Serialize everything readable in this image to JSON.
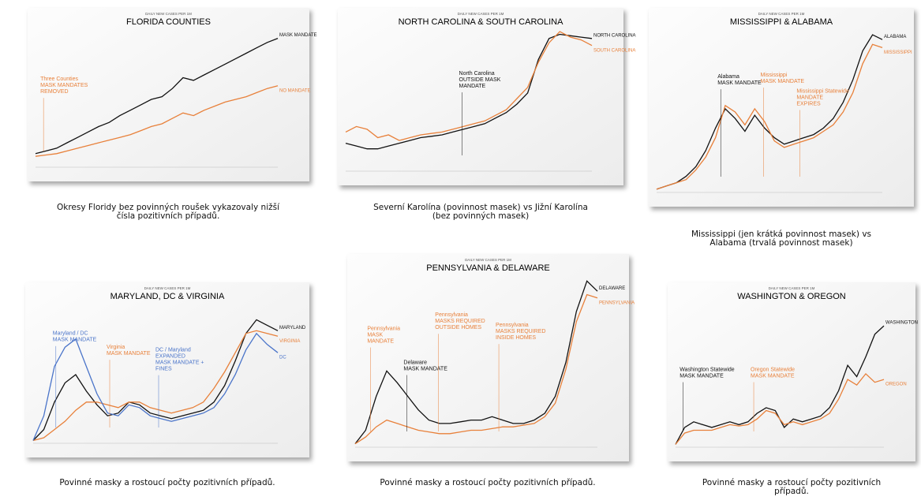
{
  "chart_data": [
    {
      "type": "line",
      "subtitle": "DAILY NEW CASES PER 1M",
      "title": "FLORIDA COUNTIES",
      "ylim": [
        0,
        100
      ],
      "series": [
        {
          "name": "MASK MANDATE",
          "color": "#111111",
          "values": [
            10,
            12,
            14,
            18,
            22,
            26,
            30,
            33,
            38,
            42,
            46,
            50,
            52,
            58,
            66,
            64,
            68,
            72,
            76,
            80,
            84,
            88,
            92,
            95
          ]
        },
        {
          "name": "NO MANDATE",
          "color": "#e8803a",
          "values": [
            8,
            9,
            10,
            12,
            14,
            16,
            18,
            20,
            22,
            24,
            27,
            30,
            32,
            36,
            40,
            38,
            42,
            45,
            48,
            50,
            52,
            55,
            58,
            60
          ]
        }
      ],
      "annotations": [
        {
          "lines": [
            "Three Counties",
            "MASK MANDATES",
            "REMOVED"
          ],
          "color": "#e8803a"
        }
      ],
      "caption": [
        "Okresy Floridy bez povinných roušek vykazovaly nižší",
        "čísla pozitivních případů."
      ]
    },
    {
      "type": "line",
      "subtitle": "DAILY NEW CASES PER 1M",
      "title": "NORTH CAROLINA & SOUTH CAROLINA",
      "ylim": [
        0,
        100
      ],
      "series": [
        {
          "name": "NORTH CAROLINA",
          "color": "#111111",
          "values": [
            20,
            18,
            16,
            16,
            18,
            20,
            22,
            24,
            25,
            26,
            28,
            30,
            32,
            34,
            38,
            42,
            48,
            56,
            80,
            95,
            98,
            97,
            96,
            95
          ]
        },
        {
          "name": "SOUTH CAROLINA",
          "color": "#e8803a",
          "values": [
            28,
            32,
            30,
            24,
            26,
            22,
            24,
            26,
            27,
            28,
            30,
            32,
            34,
            36,
            40,
            44,
            52,
            60,
            78,
            92,
            100,
            96,
            94,
            90
          ]
        }
      ],
      "annotations": [
        {
          "lines": [
            "North Carolina",
            "OUTSIDE MASK",
            "MANDATE"
          ],
          "color": "#111111"
        }
      ],
      "caption": [
        "Severní Karolína (povinnost masek) vs Jižní Karolína",
        "(bez povinných masek)"
      ]
    },
    {
      "type": "line",
      "subtitle": "DAILY NEW CASES PER 1M",
      "title": "MISSISSIPPI & ALABAMA",
      "ylim": [
        0,
        100
      ],
      "series": [
        {
          "name": "ALABAMA",
          "color": "#111111",
          "values": [
            2,
            4,
            6,
            10,
            16,
            26,
            40,
            52,
            46,
            38,
            48,
            40,
            34,
            30,
            32,
            34,
            36,
            40,
            46,
            56,
            70,
            88,
            98,
            95
          ]
        },
        {
          "name": "MISSISSIPPI",
          "color": "#e8803a",
          "values": [
            2,
            4,
            6,
            8,
            14,
            22,
            34,
            54,
            50,
            42,
            52,
            44,
            32,
            28,
            30,
            32,
            34,
            38,
            42,
            50,
            62,
            80,
            92,
            90
          ]
        }
      ],
      "annotations": [
        {
          "lines": [
            "Alabama",
            "MASK MANDATE"
          ],
          "color": "#111111"
        },
        {
          "lines": [
            "Mississippi",
            "MASK MANDATE"
          ],
          "color": "#e8803a"
        },
        {
          "lines": [
            "Mississippi Statewide",
            "MANDATE",
            "EXPIRES"
          ],
          "color": "#e8803a"
        }
      ],
      "caption": [
        "Mississippi (jen krátká povinnost masek) vs",
        "Alabama (trvalá povinnost masek)"
      ]
    },
    {
      "type": "line",
      "subtitle": "DAILY NEW CASES PER 1M",
      "title": "MARYLAND, DC & VIRGINIA",
      "ylim": [
        0,
        100
      ],
      "series": [
        {
          "name": "MARYLAND",
          "color": "#111111",
          "values": [
            2,
            10,
            30,
            44,
            50,
            38,
            28,
            20,
            22,
            30,
            28,
            22,
            20,
            18,
            20,
            22,
            24,
            30,
            42,
            60,
            80,
            90,
            86,
            82
          ]
        },
        {
          "name": "VIRGINIA",
          "color": "#e8803a",
          "values": [
            2,
            4,
            10,
            16,
            24,
            30,
            30,
            28,
            26,
            30,
            30,
            26,
            24,
            22,
            24,
            26,
            30,
            40,
            52,
            66,
            80,
            82,
            80,
            78
          ]
        },
        {
          "name": "DC",
          "color": "#4a74c9",
          "values": [
            2,
            20,
            56,
            70,
            76,
            56,
            36,
            22,
            20,
            28,
            26,
            20,
            18,
            16,
            18,
            20,
            22,
            26,
            36,
            50,
            68,
            80,
            72,
            66
          ]
        }
      ],
      "annotations": [
        {
          "lines": [
            "Maryland / DC",
            "MASK MANDATE"
          ],
          "color": "#4a74c9"
        },
        {
          "lines": [
            "Virginia",
            "MASK MANDATE"
          ],
          "color": "#e8803a"
        },
        {
          "lines": [
            "DC / Maryland",
            "EXPANDED",
            "MASK MANDATE +",
            "FINES"
          ],
          "color": "#4a74c9"
        }
      ],
      "caption": [
        "Povinné masky a rostoucí počty pozitivních případů."
      ]
    },
    {
      "type": "line",
      "subtitle": "DAILY NEW CASES PER 1M",
      "title": "PENNSYLVANIA & DELAWARE",
      "ylim": [
        0,
        100
      ],
      "series": [
        {
          "name": "DELAWARE",
          "color": "#111111",
          "values": [
            2,
            10,
            30,
            45,
            38,
            30,
            22,
            16,
            14,
            14,
            15,
            16,
            16,
            18,
            16,
            14,
            14,
            16,
            20,
            30,
            50,
            80,
            98,
            92
          ]
        },
        {
          "name": "PENNSYLVANIA",
          "color": "#e8803a",
          "values": [
            2,
            6,
            12,
            16,
            14,
            12,
            10,
            9,
            8,
            8,
            9,
            10,
            10,
            11,
            12,
            12,
            13,
            14,
            18,
            26,
            46,
            74,
            90,
            88
          ]
        }
      ],
      "annotations": [
        {
          "lines": [
            "Pennsylvania",
            "MASK",
            "MANDATE"
          ],
          "color": "#e8803a"
        },
        {
          "lines": [
            "Delaware",
            "MASK MANDATE"
          ],
          "color": "#111111"
        },
        {
          "lines": [
            "Pennsylvania",
            "MASKS REQUIRED",
            "OUTSIDE HOMES"
          ],
          "color": "#e8803a"
        },
        {
          "lines": [
            "Pennsylvania",
            "MASKS REQUIRED",
            "INSIDE HOMES"
          ],
          "color": "#e8803a"
        }
      ],
      "caption": [
        "Povinné masky a rostoucí počty pozitivních případů."
      ]
    },
    {
      "type": "line",
      "subtitle": "DAILY NEW CASES PER 1M",
      "title": "WASHINGTON & OREGON",
      "ylim": [
        0,
        100
      ],
      "series": [
        {
          "name": "WASHINGTON",
          "color": "#111111",
          "values": [
            2,
            14,
            18,
            16,
            14,
            16,
            18,
            16,
            18,
            24,
            28,
            26,
            14,
            20,
            18,
            20,
            22,
            28,
            40,
            58,
            50,
            64,
            80,
            86
          ]
        },
        {
          "name": "OREGON",
          "color": "#e8803a",
          "values": [
            2,
            10,
            12,
            12,
            12,
            14,
            16,
            15,
            16,
            20,
            26,
            24,
            16,
            18,
            16,
            18,
            20,
            24,
            34,
            48,
            44,
            52,
            46,
            48
          ]
        }
      ],
      "annotations": [
        {
          "lines": [
            "Washington Statewide",
            "MASK MANDATE"
          ],
          "color": "#111111"
        },
        {
          "lines": [
            "Oregon Statewide",
            "MASK MANDATE"
          ],
          "color": "#e8803a"
        }
      ],
      "caption": [
        "Povinné masky a rostoucí počty pozitivních",
        "případů."
      ]
    }
  ]
}
